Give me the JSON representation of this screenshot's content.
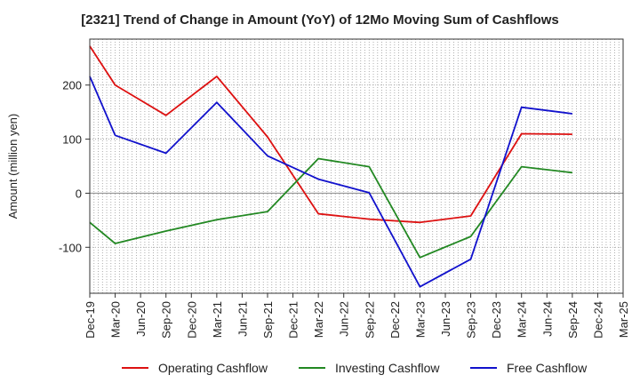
{
  "chart_data": {
    "type": "line",
    "title": "[2321]  Trend of Change in Amount (YoY) of 12Mo Moving Sum of Cashflows",
    "xlabel": "",
    "ylabel": "Amount (million yen)",
    "ylim": [
      -185,
      285
    ],
    "yticks": [
      -100,
      0,
      100,
      200
    ],
    "ytick_labels": [
      "-100",
      "0",
      "100",
      "200"
    ],
    "categories": [
      "Dec-19",
      "Mar-20",
      "Jun-20",
      "Sep-20",
      "Dec-20",
      "Mar-21",
      "Jun-21",
      "Sep-21",
      "Dec-21",
      "Mar-22",
      "Jun-22",
      "Sep-22",
      "Dec-22",
      "Mar-23",
      "Jun-23",
      "Sep-23",
      "Dec-23",
      "Mar-24",
      "Jun-24",
      "Sep-24",
      "Dec-24",
      "Mar-25"
    ],
    "tick_labels": [
      "Dec-19",
      "Mar-20",
      "Jun-20",
      "Sep-20",
      "Dec-20",
      "Mar-21",
      "Jun-21",
      "Sep-21",
      "Dec-21",
      "Mar-22",
      "Jun-22",
      "Sep-22",
      "Dec-22",
      "Mar-23",
      "Jun-23",
      "Sep-23",
      "Dec-23",
      "Mar-24",
      "Jun-24",
      "Sep-24",
      "Dec-24",
      "Mar-25"
    ],
    "grid": true,
    "legend_position": "bottom",
    "series": [
      {
        "name": "Operating Cashflow",
        "color": "#dd1111",
        "points": [
          [
            "Dec-19",
            272
          ],
          [
            "Mar-20",
            200
          ],
          [
            "Sep-20",
            144
          ],
          [
            "Mar-21",
            216
          ],
          [
            "Sep-21",
            104
          ],
          [
            "Mar-22",
            -38
          ],
          [
            "Sep-22",
            -48
          ],
          [
            "Mar-23",
            -54
          ],
          [
            "Sep-23",
            -42
          ],
          [
            "Mar-24",
            110
          ],
          [
            "Sep-24",
            109
          ]
        ]
      },
      {
        "name": "Investing Cashflow",
        "color": "#228822",
        "points": [
          [
            "Dec-19",
            -54
          ],
          [
            "Mar-20",
            -93
          ],
          [
            "Sep-20",
            -70
          ],
          [
            "Mar-21",
            -49
          ],
          [
            "Sep-21",
            -34
          ],
          [
            "Mar-22",
            64
          ],
          [
            "Sep-22",
            49
          ],
          [
            "Mar-23",
            -119
          ],
          [
            "Sep-23",
            -80
          ],
          [
            "Mar-24",
            49
          ],
          [
            "Sep-24",
            38
          ]
        ]
      },
      {
        "name": "Free Cashflow",
        "color": "#1111cc",
        "points": [
          [
            "Dec-19",
            216
          ],
          [
            "Mar-20",
            107
          ],
          [
            "Sep-20",
            74
          ],
          [
            "Mar-21",
            168
          ],
          [
            "Sep-21",
            69
          ],
          [
            "Mar-22",
            26
          ],
          [
            "Sep-22",
            1
          ],
          [
            "Mar-23",
            -173
          ],
          [
            "Sep-23",
            -122
          ],
          [
            "Mar-24",
            159
          ],
          [
            "Sep-24",
            147
          ]
        ]
      }
    ]
  }
}
